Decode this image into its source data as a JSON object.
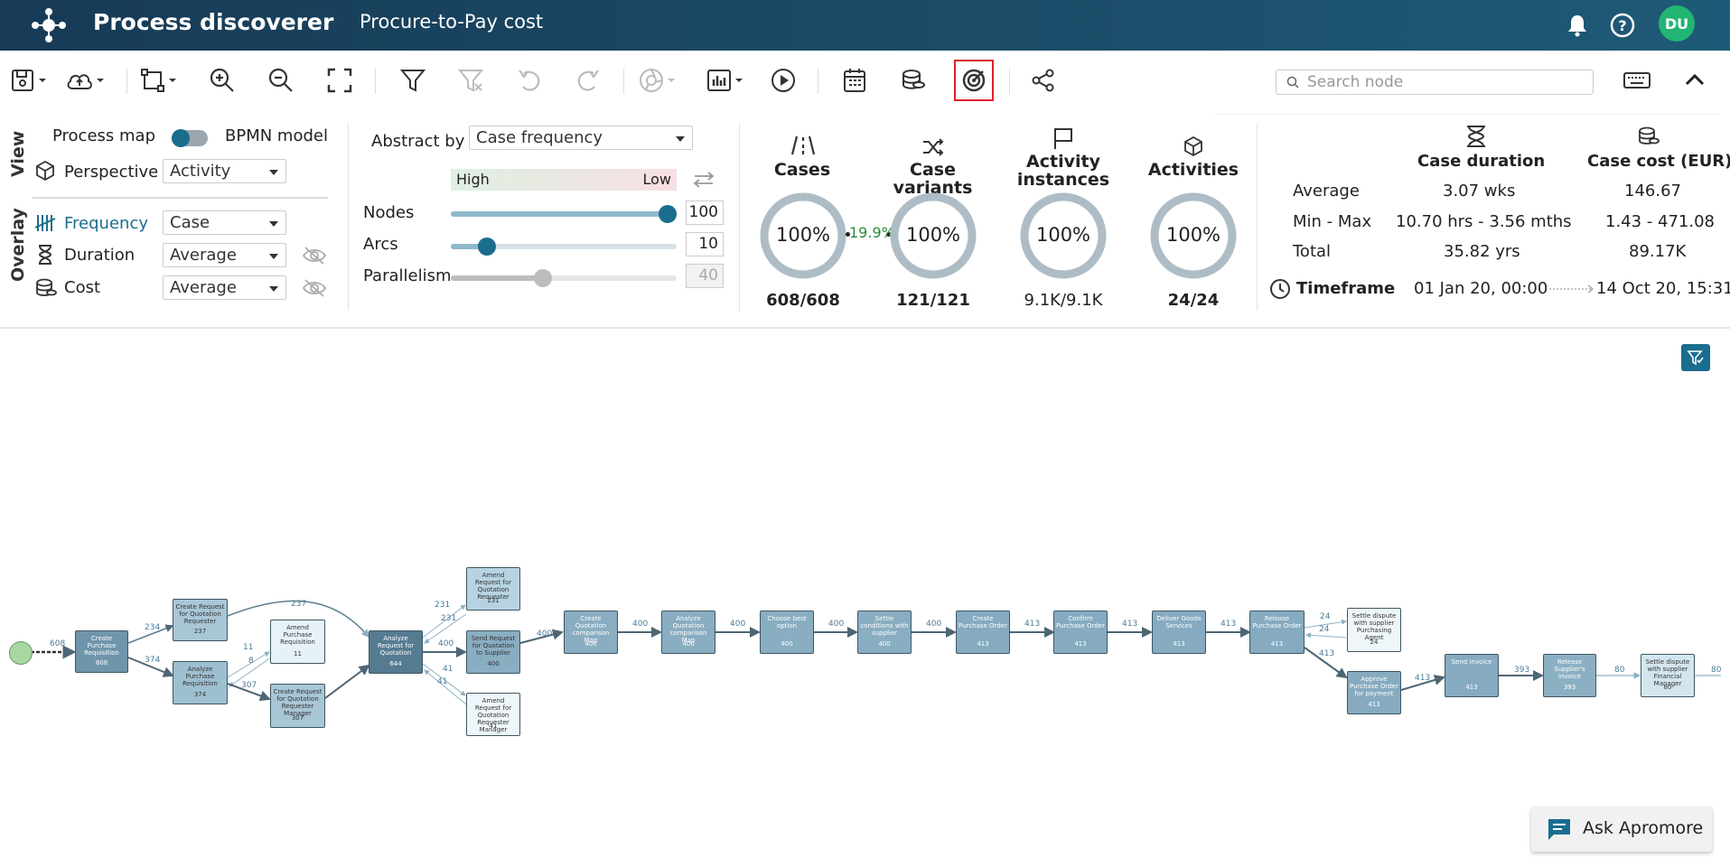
{
  "app": {
    "title": "Process discoverer",
    "document_title": "Procure-to-Pay cost",
    "user_initials": "DU",
    "accent_color": "#1b6d8e"
  },
  "toolbar": {
    "search_placeholder": "Search node",
    "icons": [
      "save-icon",
      "cloud-upload-icon",
      "layout-icon",
      "zoom-in-icon",
      "zoom-out-icon",
      "fit-screen-icon",
      "filter-icon",
      "clear-filter-icon",
      "undo-icon",
      "redo-icon",
      "camera-icon",
      "chart-icon",
      "play-icon",
      "calendar-icon",
      "coins-icon",
      "target-icon",
      "share-icon",
      "keyboard-icon",
      "collapse-icon"
    ],
    "highlighted": "target-icon"
  },
  "view": {
    "section_label": "View",
    "process_map_label": "Process map",
    "bpmn_label": "BPMN model",
    "perspective_label": "Perspective",
    "perspective_value": "Activity"
  },
  "overlay": {
    "section_label": "Overlay",
    "frequency_label": "Frequency",
    "frequency_value": "Case",
    "duration_label": "Duration",
    "duration_value": "Average",
    "cost_label": "Cost",
    "cost_value": "Average"
  },
  "abstraction": {
    "abstract_by_label": "Abstract by",
    "abstract_by_value": "Case frequency",
    "high_label": "High",
    "low_label": "Low",
    "nodes_label": "Nodes",
    "nodes_value": "100",
    "nodes_level": 1.0,
    "arcs_label": "Arcs",
    "arcs_value": "10",
    "arcs_level": 0.13,
    "parallelism_label": "Parallelism",
    "parallelism_value": "40",
    "parallelism_level": 0.4
  },
  "metrics": {
    "cases": {
      "title": "Cases",
      "percent": "100%",
      "count": "608/608"
    },
    "connector_label": "19.9%",
    "variants": {
      "title": "Case variants",
      "percent": "100%",
      "count": "121/121"
    },
    "activity_instances": {
      "title_line1": "Activity",
      "title_line2": "instances",
      "percent": "100%",
      "count": "9.1K/9.1K"
    },
    "activities": {
      "title": "Activities",
      "percent": "100%",
      "count": "24/24"
    }
  },
  "stats": {
    "duration_header": "Case duration",
    "cost_header": "Case cost (EUR)",
    "rows": [
      {
        "label": "Average",
        "duration": "3.07 wks",
        "cost": "146.67"
      },
      {
        "label": "Min - Max",
        "duration": "10.70 hrs - 3.56 mths",
        "cost": "1.43 - 471.08"
      },
      {
        "label": "Total",
        "duration": "35.82 yrs",
        "cost": "89.17K"
      }
    ],
    "timeframe_label": "Timeframe",
    "timeframe_start": "01 Jan 20, 00:00",
    "timeframe_end": "14 Oct 20, 15:31"
  },
  "process_map": {
    "start_edge_label": "608",
    "nodes": [
      {
        "id": "n1",
        "title": "Create Purchase Requisition",
        "count": "608"
      },
      {
        "id": "n2",
        "title": "Create Request for Quotation Requester",
        "count": "237"
      },
      {
        "id": "n3",
        "title": "Analyze Purchase Requisition",
        "count": "374"
      },
      {
        "id": "n4",
        "title": "Amend Purchase Requisition",
        "count": "11"
      },
      {
        "id": "n5",
        "title": "Create Request for Quotation Requester Manager",
        "count": "307"
      },
      {
        "id": "n6",
        "title": "Analyze Request for Quotation",
        "count": "644"
      },
      {
        "id": "n7",
        "title": "Amend Request for Quotation Requester",
        "count": "231"
      },
      {
        "id": "n8",
        "title": "Send Request for Quotation to Supplier",
        "count": "400"
      },
      {
        "id": "n9",
        "title": "Amend Request for Quotation Requester Manager",
        "count": "41"
      },
      {
        "id": "n10",
        "title": "Create Quotation comparison Map",
        "count": "400"
      },
      {
        "id": "n11",
        "title": "Analyze Quotation comparison Map",
        "count": "400"
      },
      {
        "id": "n12",
        "title": "Choose best option",
        "count": "400"
      },
      {
        "id": "n13",
        "title": "Settle conditions with supplier",
        "count": "400"
      },
      {
        "id": "n14",
        "title": "Create Purchase Order",
        "count": "413"
      },
      {
        "id": "n15",
        "title": "Confirm Purchase Order",
        "count": "413"
      },
      {
        "id": "n16",
        "title": "Deliver Goods Services",
        "count": "413"
      },
      {
        "id": "n17",
        "title": "Release Purchase Order",
        "count": "413"
      },
      {
        "id": "n18",
        "title": "Settle dispute with supplier Purchasing Agent",
        "count": "24"
      },
      {
        "id": "n19",
        "title": "Approve Purchase Order for payment",
        "count": "413"
      },
      {
        "id": "n20",
        "title": "Send invoice",
        "count": "413"
      },
      {
        "id": "n21",
        "title": "Release Supplier's invoice",
        "count": "393"
      },
      {
        "id": "n22",
        "title": "Settle dispute with supplier Financial Manager",
        "count": "80"
      }
    ],
    "edge_labels": [
      "234",
      "374",
      "237",
      "11",
      "8",
      "307",
      "231",
      "231",
      "400",
      "41",
      "41",
      "400",
      "400",
      "400",
      "400",
      "400",
      "413",
      "413",
      "413",
      "24",
      "24",
      "413",
      "413",
      "393",
      "80",
      "80"
    ]
  },
  "assistant": {
    "label": "Ask Apromore"
  }
}
